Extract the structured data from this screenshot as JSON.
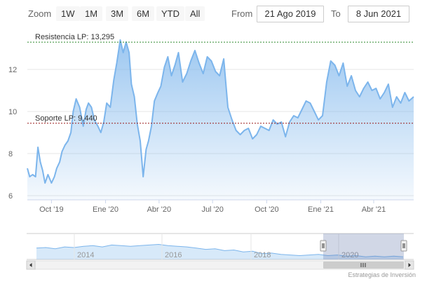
{
  "toolbar": {
    "zoom_label": "Zoom",
    "zoom_buttons": [
      "1W",
      "1M",
      "3M",
      "6M",
      "YTD",
      "All"
    ],
    "from_label": "From",
    "from_value": "21 Ago 2019",
    "to_label": "To",
    "to_value": "8 Jun 2021"
  },
  "chart_data": {
    "type": "area",
    "title": "",
    "xlabel": "",
    "ylabel": "",
    "x_ticks": [
      "Oct '19",
      "Ene '20",
      "Abr '20",
      "Jul '20",
      "Oct '20",
      "Ene '21",
      "Abr '21"
    ],
    "y_ticks": [
      6,
      8,
      10,
      12
    ],
    "ylim": [
      5.8,
      13.9
    ],
    "grid": true,
    "x": [
      "2019-08-21",
      "2019-08-25",
      "2019-08-30",
      "2019-09-04",
      "2019-09-08",
      "2019-09-12",
      "2019-09-16",
      "2019-09-20",
      "2019-09-25",
      "2019-10-01",
      "2019-10-06",
      "2019-10-10",
      "2019-10-15",
      "2019-10-19",
      "2019-10-24",
      "2019-10-29",
      "2019-11-03",
      "2019-11-07",
      "2019-11-12",
      "2019-11-18",
      "2019-11-24",
      "2019-11-29",
      "2019-12-03",
      "2019-12-08",
      "2019-12-13",
      "2019-12-19",
      "2019-12-24",
      "2019-12-29",
      "2020-01-03",
      "2020-01-09",
      "2020-01-15",
      "2020-01-20",
      "2020-01-26",
      "2020-01-31",
      "2020-02-05",
      "2020-02-10",
      "2020-02-14",
      "2020-02-19",
      "2020-02-24",
      "2020-02-29",
      "2020-03-05",
      "2020-03-10",
      "2020-03-14",
      "2020-03-19",
      "2020-03-24",
      "2020-03-30",
      "2020-04-04",
      "2020-04-10",
      "2020-04-16",
      "2020-04-22",
      "2020-04-28",
      "2020-05-04",
      "2020-05-11",
      "2020-05-18",
      "2020-05-25",
      "2020-06-01",
      "2020-06-08",
      "2020-06-15",
      "2020-06-22",
      "2020-06-29",
      "2020-07-06",
      "2020-07-13",
      "2020-07-20",
      "2020-07-27",
      "2020-08-03",
      "2020-08-10",
      "2020-08-17",
      "2020-08-24",
      "2020-08-31",
      "2020-09-07",
      "2020-09-14",
      "2020-09-21",
      "2020-09-28",
      "2020-10-05",
      "2020-10-12",
      "2020-10-19",
      "2020-10-26",
      "2020-11-02",
      "2020-11-09",
      "2020-11-16",
      "2020-11-23",
      "2020-11-30",
      "2020-12-07",
      "2020-12-14",
      "2020-12-21",
      "2020-12-28",
      "2021-01-04",
      "2021-01-11",
      "2021-01-18",
      "2021-01-25",
      "2021-02-01",
      "2021-02-08",
      "2021-02-15",
      "2021-02-22",
      "2021-03-01",
      "2021-03-08",
      "2021-03-15",
      "2021-03-22",
      "2021-03-29",
      "2021-04-05",
      "2021-04-12",
      "2021-04-19",
      "2021-04-26",
      "2021-05-03",
      "2021-05-10",
      "2021-05-17",
      "2021-05-24",
      "2021-05-31",
      "2021-06-08"
    ],
    "series": [
      {
        "values": [
          7.3,
          6.9,
          7.0,
          6.9,
          8.3,
          7.6,
          7.2,
          6.6,
          7.0,
          6.6,
          6.9,
          7.3,
          7.6,
          8.1,
          8.4,
          8.6,
          9.0,
          10.0,
          10.6,
          10.2,
          9.3,
          10.1,
          10.4,
          10.2,
          9.6,
          9.3,
          9.0,
          9.5,
          10.4,
          10.2,
          11.5,
          12.3,
          13.4,
          12.8,
          13.3,
          12.8,
          11.3,
          10.7,
          9.4,
          8.6,
          6.9,
          8.2,
          8.6,
          9.3,
          10.5,
          10.9,
          11.2,
          12.1,
          12.6,
          11.7,
          12.2,
          12.8,
          11.4,
          11.8,
          12.4,
          12.9,
          12.3,
          11.8,
          12.6,
          12.4,
          11.9,
          11.7,
          12.5,
          10.2,
          9.6,
          9.1,
          8.9,
          9.1,
          9.2,
          8.7,
          8.9,
          9.3,
          9.2,
          9.1,
          9.6,
          9.4,
          9.5,
          8.8,
          9.5,
          9.8,
          9.7,
          10.1,
          10.5,
          10.4,
          10.0,
          9.6,
          9.8,
          11.4,
          12.4,
          12.2,
          11.7,
          12.3,
          11.2,
          11.7,
          11.0,
          10.7,
          11.1,
          11.4,
          11.0,
          11.1,
          10.6,
          10.9,
          11.3,
          10.2,
          10.7,
          10.4,
          10.9,
          10.5,
          10.7
        ]
      }
    ],
    "resistance": {
      "label": "Resistencia LP: 13,295",
      "value": 13.295
    },
    "support": {
      "label": "Soporte LP: 9,440",
      "value": 9.44
    },
    "navigator": {
      "years": [
        "2014",
        "2016",
        "2018",
        "2020"
      ],
      "values": [
        7.4,
        7.5,
        7.3,
        7.6,
        7.5,
        7.7,
        7.8,
        7.6,
        7.9,
        7.8,
        7.7,
        7.8,
        7.9,
        8.0,
        7.8,
        7.7,
        7.6,
        7.4,
        7.2,
        7.3,
        7.0,
        7.1,
        6.8,
        6.9,
        6.5,
        6.6,
        6.4,
        6.3,
        6.2,
        6.3,
        6.4,
        6.2,
        6.3,
        6.1,
        6.2,
        6.0,
        6.1,
        6.0,
        6.1,
        6.0
      ]
    }
  },
  "credits": "Estrategias de Inversión"
}
